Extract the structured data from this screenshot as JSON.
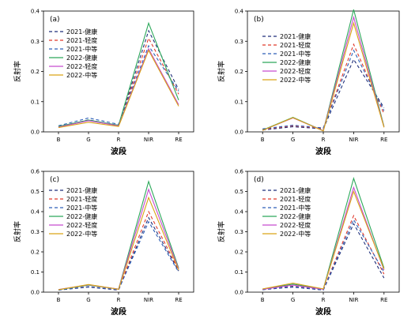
{
  "legend_entries": [
    "2021-健康",
    "2021-轻度",
    "2021-中等",
    "2022-健康",
    "2022-轻度",
    "2022-中等"
  ],
  "series_style": [
    {
      "color": "#1f2f7a",
      "dash": "4 3"
    },
    {
      "color": "#e0392b",
      "dash": "4 3"
    },
    {
      "color": "#2d5fb8",
      "dash": "4 3"
    },
    {
      "color": "#2ca85a",
      "dash": ""
    },
    {
      "color": "#c64ccf",
      "dash": ""
    },
    {
      "color": "#d9a316",
      "dash": ""
    }
  ],
  "chart_data": [
    {
      "type": "line",
      "panel": "(a)",
      "categories": [
        "B",
        "G",
        "R",
        "NIR",
        "RE"
      ],
      "xlabel": "波段",
      "ylabel": "反射率",
      "ylim": [
        0,
        0.4
      ],
      "yticks": [
        "0.0",
        "0.1",
        "0.2",
        "0.3",
        "0.4"
      ],
      "series": [
        {
          "name": "2021-健康",
          "values": [
            0.015,
            0.04,
            0.02,
            0.335,
            0.14
          ]
        },
        {
          "name": "2021-轻度",
          "values": [
            0.017,
            0.038,
            0.02,
            0.31,
            0.125
          ]
        },
        {
          "name": "2021-中等",
          "values": [
            0.02,
            0.046,
            0.025,
            0.285,
            0.135
          ]
        },
        {
          "name": "2022-健康",
          "values": [
            0.018,
            0.039,
            0.022,
            0.36,
            0.105
          ]
        },
        {
          "name": "2022-轻度",
          "values": [
            0.016,
            0.037,
            0.02,
            0.275,
            0.09
          ]
        },
        {
          "name": "2022-中等",
          "values": [
            0.014,
            0.032,
            0.018,
            0.27,
            0.085
          ]
        }
      ]
    },
    {
      "type": "line",
      "panel": "(b)",
      "categories": [
        "B",
        "G",
        "R",
        "NIR",
        "RE"
      ],
      "xlabel": "波段",
      "ylabel": "反射率",
      "ylim": [
        0,
        0.4
      ],
      "yticks": [
        "0.0",
        "0.1",
        "0.2",
        "0.3",
        "0.4"
      ],
      "series": [
        {
          "name": "2021-健康",
          "values": [
            0.006,
            0.017,
            0.01,
            0.24,
            0.08
          ]
        },
        {
          "name": "2021-轻度",
          "values": [
            0.008,
            0.02,
            0.012,
            0.29,
            0.06
          ]
        },
        {
          "name": "2021-中等",
          "values": [
            0.01,
            0.022,
            0.013,
            0.27,
            0.07
          ]
        },
        {
          "name": "2022-健康",
          "values": [
            0.006,
            0.048,
            0.004,
            0.405,
            0.018
          ]
        },
        {
          "name": "2022-轻度",
          "values": [
            0.005,
            0.046,
            0.004,
            0.38,
            0.016
          ]
        },
        {
          "name": "2022-中等",
          "values": [
            0.005,
            0.047,
            0.003,
            0.36,
            0.015
          ]
        }
      ]
    },
    {
      "type": "line",
      "panel": "(c)",
      "categories": [
        "B",
        "G",
        "R",
        "NIR",
        "RE"
      ],
      "xlabel": "波段",
      "ylabel": "反射率",
      "ylim": [
        0,
        0.6
      ],
      "yticks": [
        "0.0",
        "0.1",
        "0.2",
        "0.3",
        "0.4",
        "0.5",
        "0.6"
      ],
      "series": [
        {
          "name": "2021-健康",
          "values": [
            0.01,
            0.025,
            0.01,
            0.37,
            0.105
          ]
        },
        {
          "name": "2021-轻度",
          "values": [
            0.012,
            0.028,
            0.012,
            0.4,
            0.11
          ]
        },
        {
          "name": "2021-中等",
          "values": [
            0.011,
            0.027,
            0.012,
            0.35,
            0.1
          ]
        },
        {
          "name": "2022-健康",
          "values": [
            0.012,
            0.035,
            0.015,
            0.55,
            0.12
          ]
        },
        {
          "name": "2022-轻度",
          "values": [
            0.013,
            0.037,
            0.015,
            0.51,
            0.115
          ]
        },
        {
          "name": "2022-中等",
          "values": [
            0.012,
            0.038,
            0.014,
            0.47,
            0.11
          ]
        }
      ]
    },
    {
      "type": "line",
      "panel": "(d)",
      "categories": [
        "B",
        "G",
        "R",
        "NIR",
        "RE"
      ],
      "xlabel": "波段",
      "ylabel": "反射率",
      "ylim": [
        0,
        0.6
      ],
      "yticks": [
        "0.0",
        "0.1",
        "0.2",
        "0.3",
        "0.4",
        "0.5",
        "0.6"
      ],
      "series": [
        {
          "name": "2021-健康",
          "values": [
            0.012,
            0.025,
            0.01,
            0.34,
            0.07
          ]
        },
        {
          "name": "2021-轻度",
          "values": [
            0.014,
            0.03,
            0.012,
            0.38,
            0.09
          ]
        },
        {
          "name": "2021-中等",
          "values": [
            0.013,
            0.028,
            0.011,
            0.36,
            0.1
          ]
        },
        {
          "name": "2022-健康",
          "values": [
            0.015,
            0.04,
            0.015,
            0.565,
            0.12
          ]
        },
        {
          "name": "2022-轻度",
          "values": [
            0.014,
            0.035,
            0.014,
            0.52,
            0.11
          ]
        },
        {
          "name": "2022-中等",
          "values": [
            0.016,
            0.045,
            0.016,
            0.5,
            0.115
          ]
        }
      ]
    }
  ]
}
